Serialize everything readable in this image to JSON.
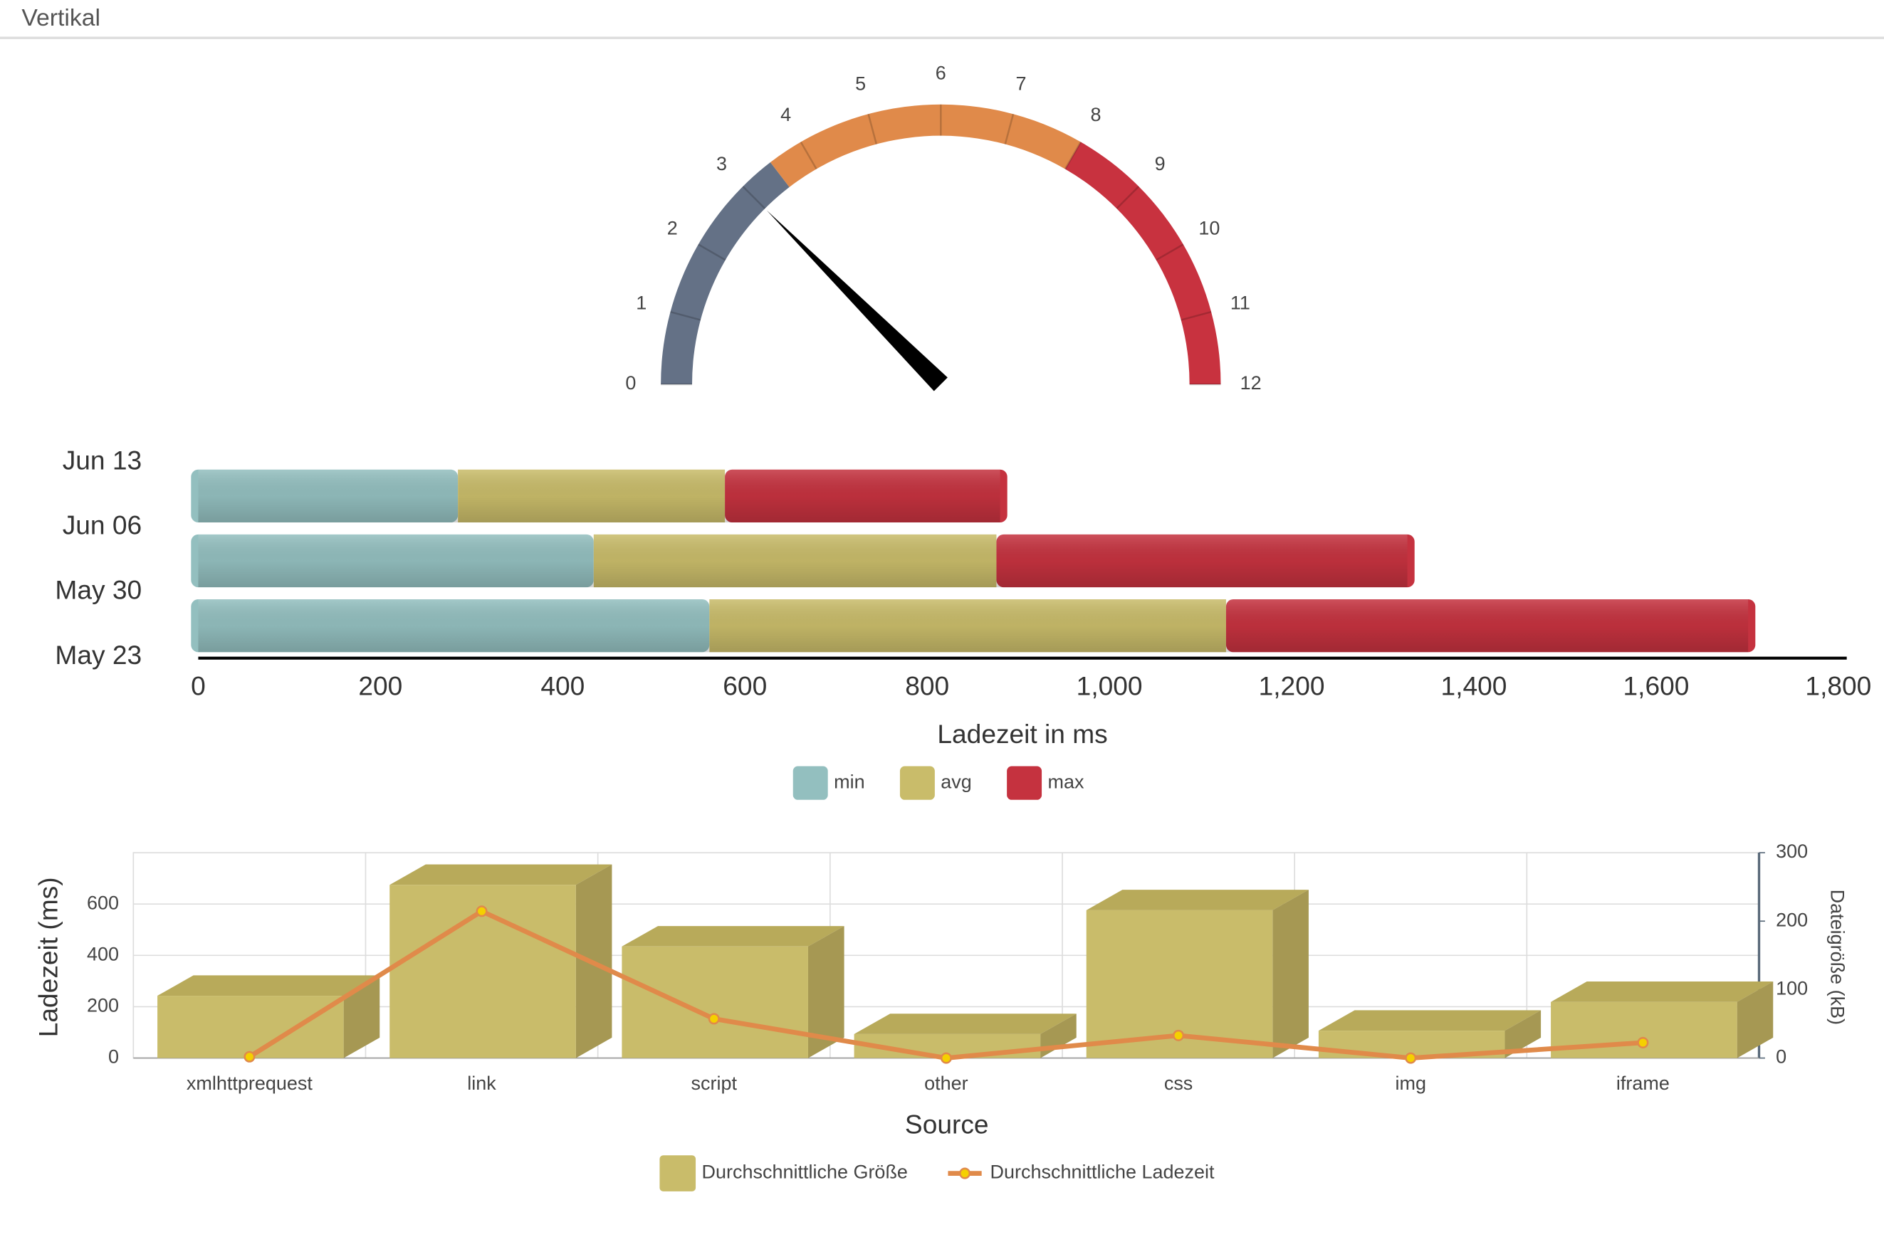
{
  "header": {
    "title": "Vertikal"
  },
  "chart_data": [
    {
      "type": "gauge",
      "ylim": [
        0,
        12
      ],
      "yticks": [
        0,
        1,
        2,
        3,
        4,
        5,
        6,
        7,
        8,
        9,
        10,
        11,
        12
      ],
      "value": 3,
      "bands": [
        {
          "from": 0,
          "to": 3.5,
          "color": "#647186"
        },
        {
          "from": 3.5,
          "to": 8,
          "color": "#e08a4a"
        },
        {
          "from": 8,
          "to": 12,
          "color": "#c8323f"
        }
      ]
    },
    {
      "type": "stacked_bar",
      "orientation": "horizontal",
      "categories": [
        "Jun 13",
        "Jun 06",
        "May 30",
        "May 23"
      ],
      "series": [
        {
          "name": "min",
          "color": "#93bfbf",
          "values": [
            285,
            434,
            561,
            null
          ]
        },
        {
          "name": "avg",
          "color": "#c9bc6a",
          "values": [
            293,
            442,
            567,
            null
          ]
        },
        {
          "name": "max",
          "color": "#c5323f",
          "values": [
            302,
            451,
            573,
            null
          ]
        }
      ],
      "xlim": [
        0,
        1800
      ],
      "xticks": [
        0,
        200,
        400,
        600,
        800,
        {
          "value": 1000,
          "label": "1,000"
        },
        {
          "value": 1200,
          "label": "1,200"
        },
        {
          "value": 1400,
          "label": "1,400"
        },
        {
          "value": 1600,
          "label": "1,600"
        },
        {
          "value": 1800,
          "label": "1,800"
        }
      ],
      "xlabel": "Ladezeit in ms"
    },
    {
      "type": "combo",
      "categories": [
        "xmlhttprequest",
        "link",
        "script",
        "other",
        "css",
        "img",
        "iframe"
      ],
      "series": [
        {
          "name": "Durchschnittliche Größe",
          "type": "bar",
          "axis": "y2",
          "color": "#c9bc6a",
          "values": [
            91,
            253,
            163,
            35,
            216,
            40,
            82
          ]
        },
        {
          "name": "Durchschnittliche Ladezeit",
          "type": "line",
          "color": "#e08a4a",
          "marker_color": "#f5d000",
          "values": [
            5,
            572,
            153,
            0,
            88,
            0,
            60
          ]
        }
      ],
      "ylim": [
        0,
        800
      ],
      "yticks": [
        0,
        200,
        400,
        600
      ],
      "y2lim": [
        0,
        300
      ],
      "y2ticks": [
        0,
        100,
        200,
        300
      ],
      "xlabel": "Source",
      "ylabel": "Ladezeit (ms)",
      "y2label": "Dateigröße (kB)",
      "grid": true
    }
  ]
}
